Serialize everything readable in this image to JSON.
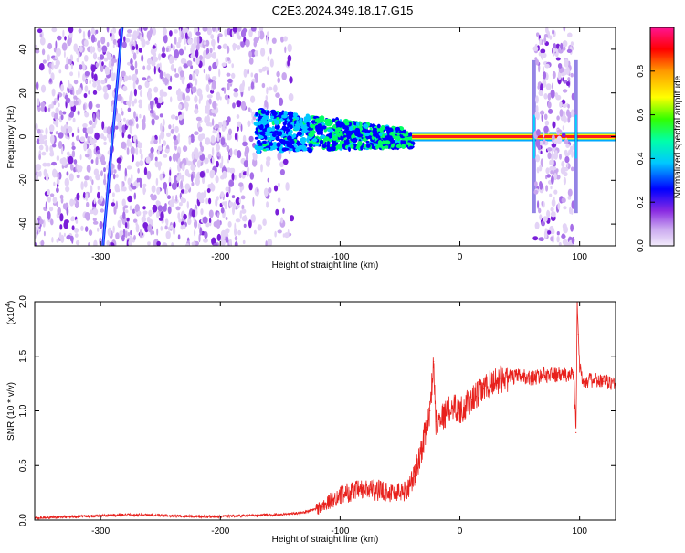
{
  "title": "C2E3.2024.349.18.17.G15",
  "chart_data": [
    {
      "type": "heatmap",
      "xlabel": "Height of straight line (km)",
      "ylabel": "Frequency (Hz)",
      "xlim": [
        -355,
        130
      ],
      "ylim": [
        -50,
        50
      ],
      "x_ticks": [
        -300,
        -200,
        -100,
        0,
        100
      ],
      "x_tick_labels": [
        "-300",
        "-200",
        "-100",
        "0",
        "100"
      ],
      "y_ticks": [
        -40,
        -20,
        0,
        20,
        40
      ],
      "y_tick_labels": [
        "-40",
        "-20",
        "0",
        "20",
        "40"
      ],
      "colorbar": {
        "label": "Normalized spectral amplitude",
        "range": [
          0,
          1
        ],
        "ticks": [
          0.0,
          0.2,
          0.4,
          0.6,
          0.8
        ],
        "tick_labels": [
          "0.0",
          "0.2",
          "0.4",
          "0.6",
          "0.8"
        ],
        "colors": [
          "#e6d6f7",
          "#8a2be2",
          "#0000ff",
          "#00c8ff",
          "#00ff66",
          "#ffff00",
          "#ff9900",
          "#ff0000",
          "#ff1493"
        ]
      },
      "features": [
        {
          "kind": "noise_region",
          "x": [
            -355,
            -140
          ],
          "y": [
            -50,
            50
          ],
          "level": 0.1
        },
        {
          "kind": "diagonal_streak",
          "x": [
            -298,
            -282
          ],
          "y": [
            -50,
            50
          ],
          "level": 0.2
        },
        {
          "kind": "signal_band",
          "x": [
            -170,
            -40
          ],
          "y": [
            -10,
            10
          ],
          "level": 0.35
        },
        {
          "kind": "carrier_line",
          "x": [
            -40,
            130
          ],
          "y": [
            0,
            0
          ],
          "level": 0.95
        },
        {
          "kind": "noise_region",
          "x": [
            63,
            95
          ],
          "y": [
            -50,
            50
          ],
          "level": 0.12
        }
      ]
    },
    {
      "type": "line",
      "xlabel": "Height of straight line (km)",
      "ylabel": "SNR (10 * v/v)",
      "y_multiplier": "(x10",
      "y_multiplier_exp": "4",
      "y_multiplier_close": ")",
      "xlim": [
        -355,
        130
      ],
      "ylim": [
        0,
        2.0
      ],
      "x_ticks": [
        -300,
        -200,
        -100,
        0,
        100
      ],
      "x_tick_labels": [
        "-300",
        "-200",
        "-100",
        "0",
        "100"
      ],
      "y_ticks": [
        0.0,
        0.5,
        1.0,
        1.5,
        2.0
      ],
      "y_tick_labels": [
        "0.0",
        "0.5",
        "1.0",
        "1.5",
        "2.0"
      ],
      "color": "#e8211d",
      "series": [
        {
          "x": [
            -355,
            -330,
            -300,
            -270,
            -240,
            -210,
            -180,
            -150,
            -130,
            -115,
            -105,
            -95,
            -85,
            -75,
            -65,
            -55,
            -45,
            -38,
            -32,
            -28,
            -25,
            -22,
            -20,
            -17,
            -14,
            -10,
            -5,
            0,
            10,
            20,
            30,
            40,
            50,
            60,
            70,
            80,
            90,
            95,
            97,
            98,
            99,
            100,
            102,
            105,
            110,
            120,
            130
          ],
          "y": [
            0.02,
            0.03,
            0.04,
            0.05,
            0.04,
            0.03,
            0.04,
            0.05,
            0.07,
            0.12,
            0.2,
            0.25,
            0.27,
            0.28,
            0.27,
            0.25,
            0.27,
            0.4,
            0.65,
            0.85,
            1.0,
            1.45,
            0.9,
            0.95,
            0.95,
            1.0,
            1.05,
            1.0,
            1.1,
            1.2,
            1.28,
            1.3,
            1.32,
            1.3,
            1.33,
            1.33,
            1.32,
            1.35,
            0.8,
            2.0,
            1.7,
            1.4,
            1.3,
            1.28,
            1.28,
            1.27,
            1.25
          ]
        }
      ]
    }
  ]
}
